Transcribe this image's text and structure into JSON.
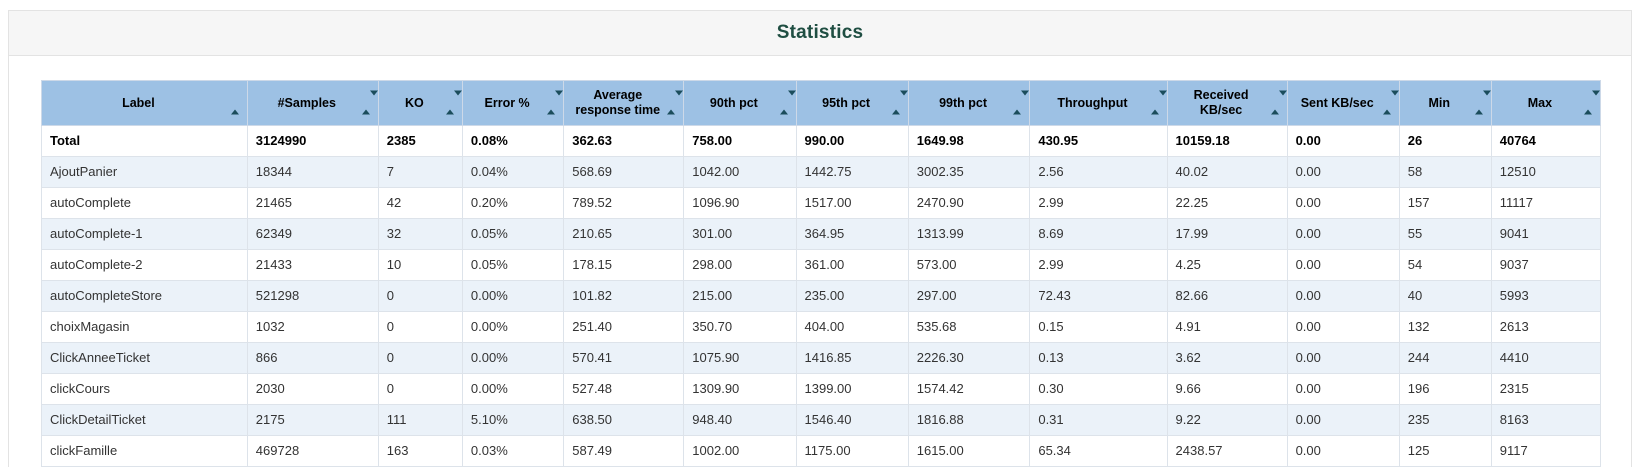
{
  "page": {
    "title": "Statistics"
  },
  "colors": {
    "header_bg": "#9dc1e4",
    "stripe_bg": "#ebf2f9",
    "title_color": "#1f4e42",
    "sort_icon": "#1b4d5c"
  },
  "table": {
    "columns": [
      {
        "label": "Label",
        "sort": "asc"
      },
      {
        "label": "#Samples",
        "sort": "both"
      },
      {
        "label": "KO",
        "sort": "both"
      },
      {
        "label": "Error %",
        "sort": "both"
      },
      {
        "label": "Average response time",
        "sort": "both"
      },
      {
        "label": "90th pct",
        "sort": "both"
      },
      {
        "label": "95th pct",
        "sort": "both"
      },
      {
        "label": "99th pct",
        "sort": "both"
      },
      {
        "label": "Throughput",
        "sort": "both"
      },
      {
        "label": "Received KB/sec",
        "sort": "both"
      },
      {
        "label": "Sent KB/sec",
        "sort": "both"
      },
      {
        "label": "Min",
        "sort": "both"
      },
      {
        "label": "Max",
        "sort": "both"
      }
    ],
    "total_row": {
      "label": "Total",
      "values": [
        "3124990",
        "2385",
        "0.08%",
        "362.63",
        "758.00",
        "990.00",
        "1649.98",
        "430.95",
        "10159.18",
        "0.00",
        "26",
        "40764"
      ]
    },
    "rows": [
      {
        "label": "AjoutPanier",
        "values": [
          "18344",
          "7",
          "0.04%",
          "568.69",
          "1042.00",
          "1442.75",
          "3002.35",
          "2.56",
          "40.02",
          "0.00",
          "58",
          "12510"
        ]
      },
      {
        "label": "autoComplete",
        "values": [
          "21465",
          "42",
          "0.20%",
          "789.52",
          "1096.90",
          "1517.00",
          "2470.90",
          "2.99",
          "22.25",
          "0.00",
          "157",
          "11117"
        ]
      },
      {
        "label": "autoComplete-1",
        "values": [
          "62349",
          "32",
          "0.05%",
          "210.65",
          "301.00",
          "364.95",
          "1313.99",
          "8.69",
          "17.99",
          "0.00",
          "55",
          "9041"
        ]
      },
      {
        "label": "autoComplete-2",
        "values": [
          "21433",
          "10",
          "0.05%",
          "178.15",
          "298.00",
          "361.00",
          "573.00",
          "2.99",
          "4.25",
          "0.00",
          "54",
          "9037"
        ]
      },
      {
        "label": "autoCompleteStore",
        "values": [
          "521298",
          "0",
          "0.00%",
          "101.82",
          "215.00",
          "235.00",
          "297.00",
          "72.43",
          "82.66",
          "0.00",
          "40",
          "5993"
        ]
      },
      {
        "label": "choixMagasin",
        "values": [
          "1032",
          "0",
          "0.00%",
          "251.40",
          "350.70",
          "404.00",
          "535.68",
          "0.15",
          "4.91",
          "0.00",
          "132",
          "2613"
        ]
      },
      {
        "label": "ClickAnneeTicket",
        "values": [
          "866",
          "0",
          "0.00%",
          "570.41",
          "1075.90",
          "1416.85",
          "2226.30",
          "0.13",
          "3.62",
          "0.00",
          "244",
          "4410"
        ]
      },
      {
        "label": "clickCours",
        "values": [
          "2030",
          "0",
          "0.00%",
          "527.48",
          "1309.90",
          "1399.00",
          "1574.42",
          "0.30",
          "9.66",
          "0.00",
          "196",
          "2315"
        ]
      },
      {
        "label": "ClickDetailTicket",
        "values": [
          "2175",
          "111",
          "5.10%",
          "638.50",
          "948.40",
          "1546.40",
          "1816.88",
          "0.31",
          "9.22",
          "0.00",
          "235",
          "8163"
        ]
      },
      {
        "label": "clickFamille",
        "values": [
          "469728",
          "163",
          "0.03%",
          "587.49",
          "1002.00",
          "1175.00",
          "1615.00",
          "65.34",
          "2438.57",
          "0.00",
          "125",
          "9117"
        ]
      }
    ]
  }
}
